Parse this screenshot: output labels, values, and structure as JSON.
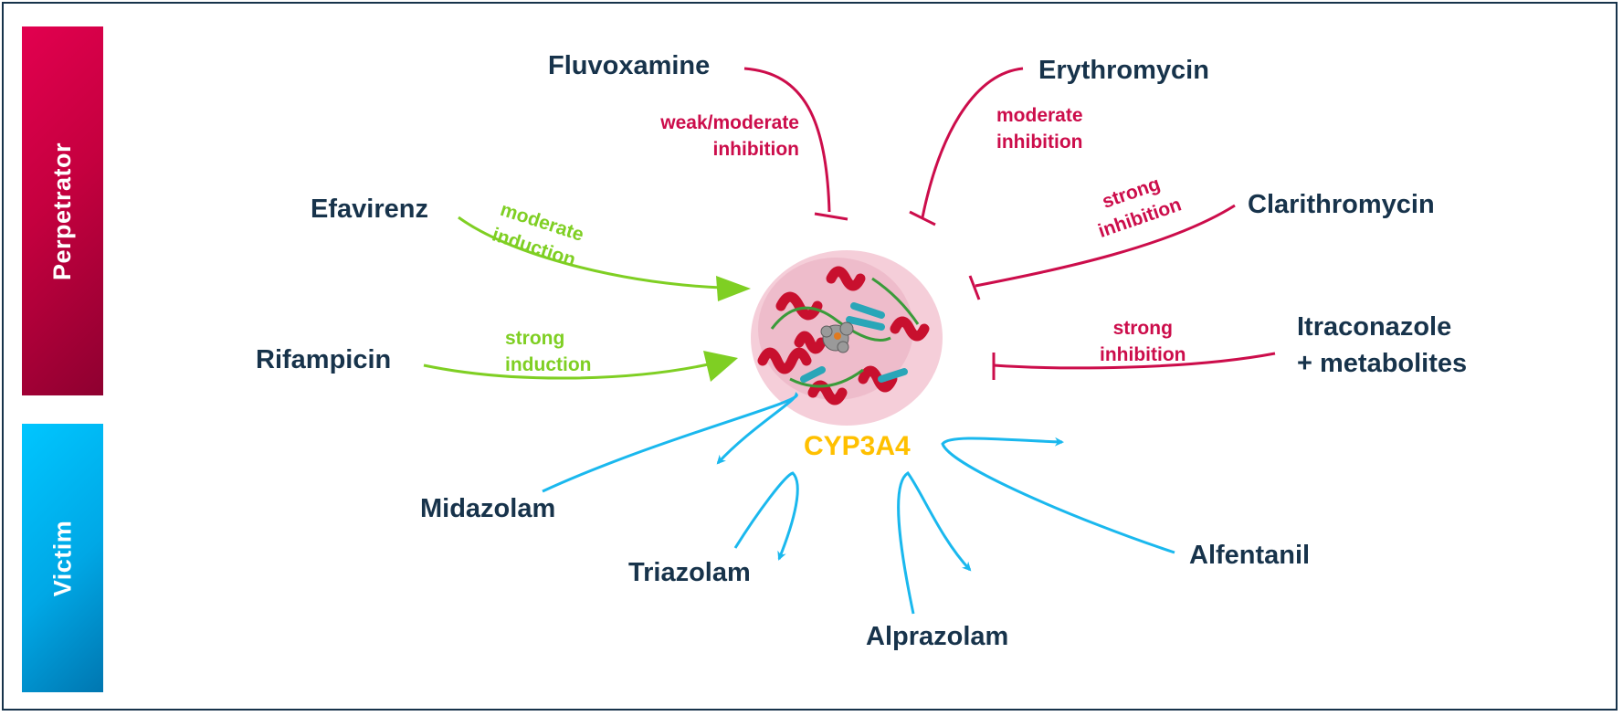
{
  "sidebar": {
    "perpetrator_label": "Perpetrator",
    "victim_label": "Victim"
  },
  "center": {
    "label": "CYP3A4"
  },
  "perpetrators": {
    "fluvoxamine": {
      "name": "Fluvoxamine",
      "effect_line1": "weak/moderate",
      "effect_line2": "inhibition"
    },
    "erythromycin": {
      "name": "Erythromycin",
      "effect_line1": "moderate",
      "effect_line2": "inhibition"
    },
    "clarithromycin": {
      "name": "Clarithromycin",
      "effect_line1": "strong",
      "effect_line2": "inhibition"
    },
    "itraconazole": {
      "name_line1": "Itraconazole",
      "name_line2": "+ metabolites",
      "effect_line1": "strong",
      "effect_line2": "inhibition"
    },
    "efavirenz": {
      "name": "Efavirenz",
      "effect_line1": "moderate",
      "effect_line2": "induction"
    },
    "rifampicin": {
      "name": "Rifampicin",
      "effect_line1": "strong",
      "effect_line2": "induction"
    }
  },
  "victims": {
    "midazolam": "Midazolam",
    "triazolam": "Triazolam",
    "alprazolam": "Alprazolam",
    "alfentanil": "Alfentanil"
  },
  "colors": {
    "inhibition": "#cc0d4b",
    "induction": "#7fcf23",
    "metabolism": "#1ab8ee",
    "drug_text": "#17334b",
    "center_label": "#ffc000",
    "frame": "#17334b"
  }
}
